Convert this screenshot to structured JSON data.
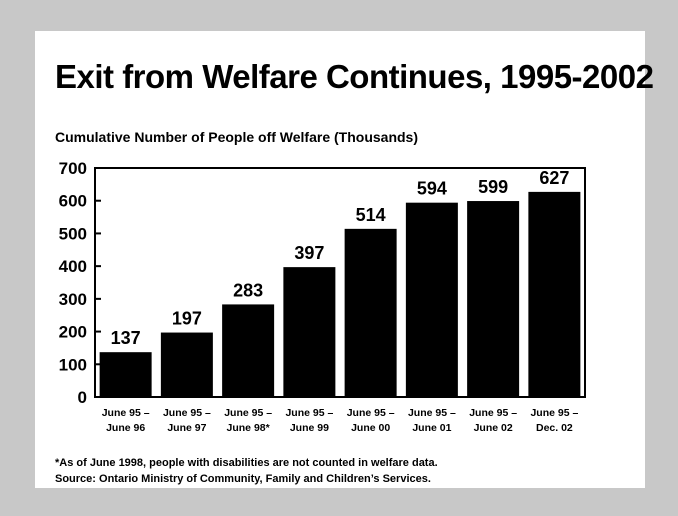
{
  "chart_data": {
    "type": "bar",
    "title": "Exit from Welfare Continues, 1995-2002",
    "subtitle": "Cumulative Number of People off Welfare (Thousands)",
    "categories": [
      [
        "June 95 –",
        "June 96"
      ],
      [
        "June 95 –",
        "June 97"
      ],
      [
        "June 95 –",
        "June 98*"
      ],
      [
        "June 95 –",
        "June 99"
      ],
      [
        "June 95 –",
        "June 00"
      ],
      [
        "June 95 –",
        "June 01"
      ],
      [
        "June 95 –",
        "June 02"
      ],
      [
        "June 95 –",
        "Dec. 02"
      ]
    ],
    "values": [
      137,
      197,
      283,
      397,
      514,
      594,
      599,
      627
    ],
    "ylim": [
      0,
      700
    ],
    "yticks": [
      0,
      100,
      200,
      300,
      400,
      500,
      600,
      700
    ],
    "bar_color": "#000000",
    "grid": false
  },
  "footnotes": {
    "note": "*As of June 1998, people with disabilities are not counted in welfare data.",
    "source": "Source:  Ontario Ministry of Community, Family and Children’s Services."
  }
}
